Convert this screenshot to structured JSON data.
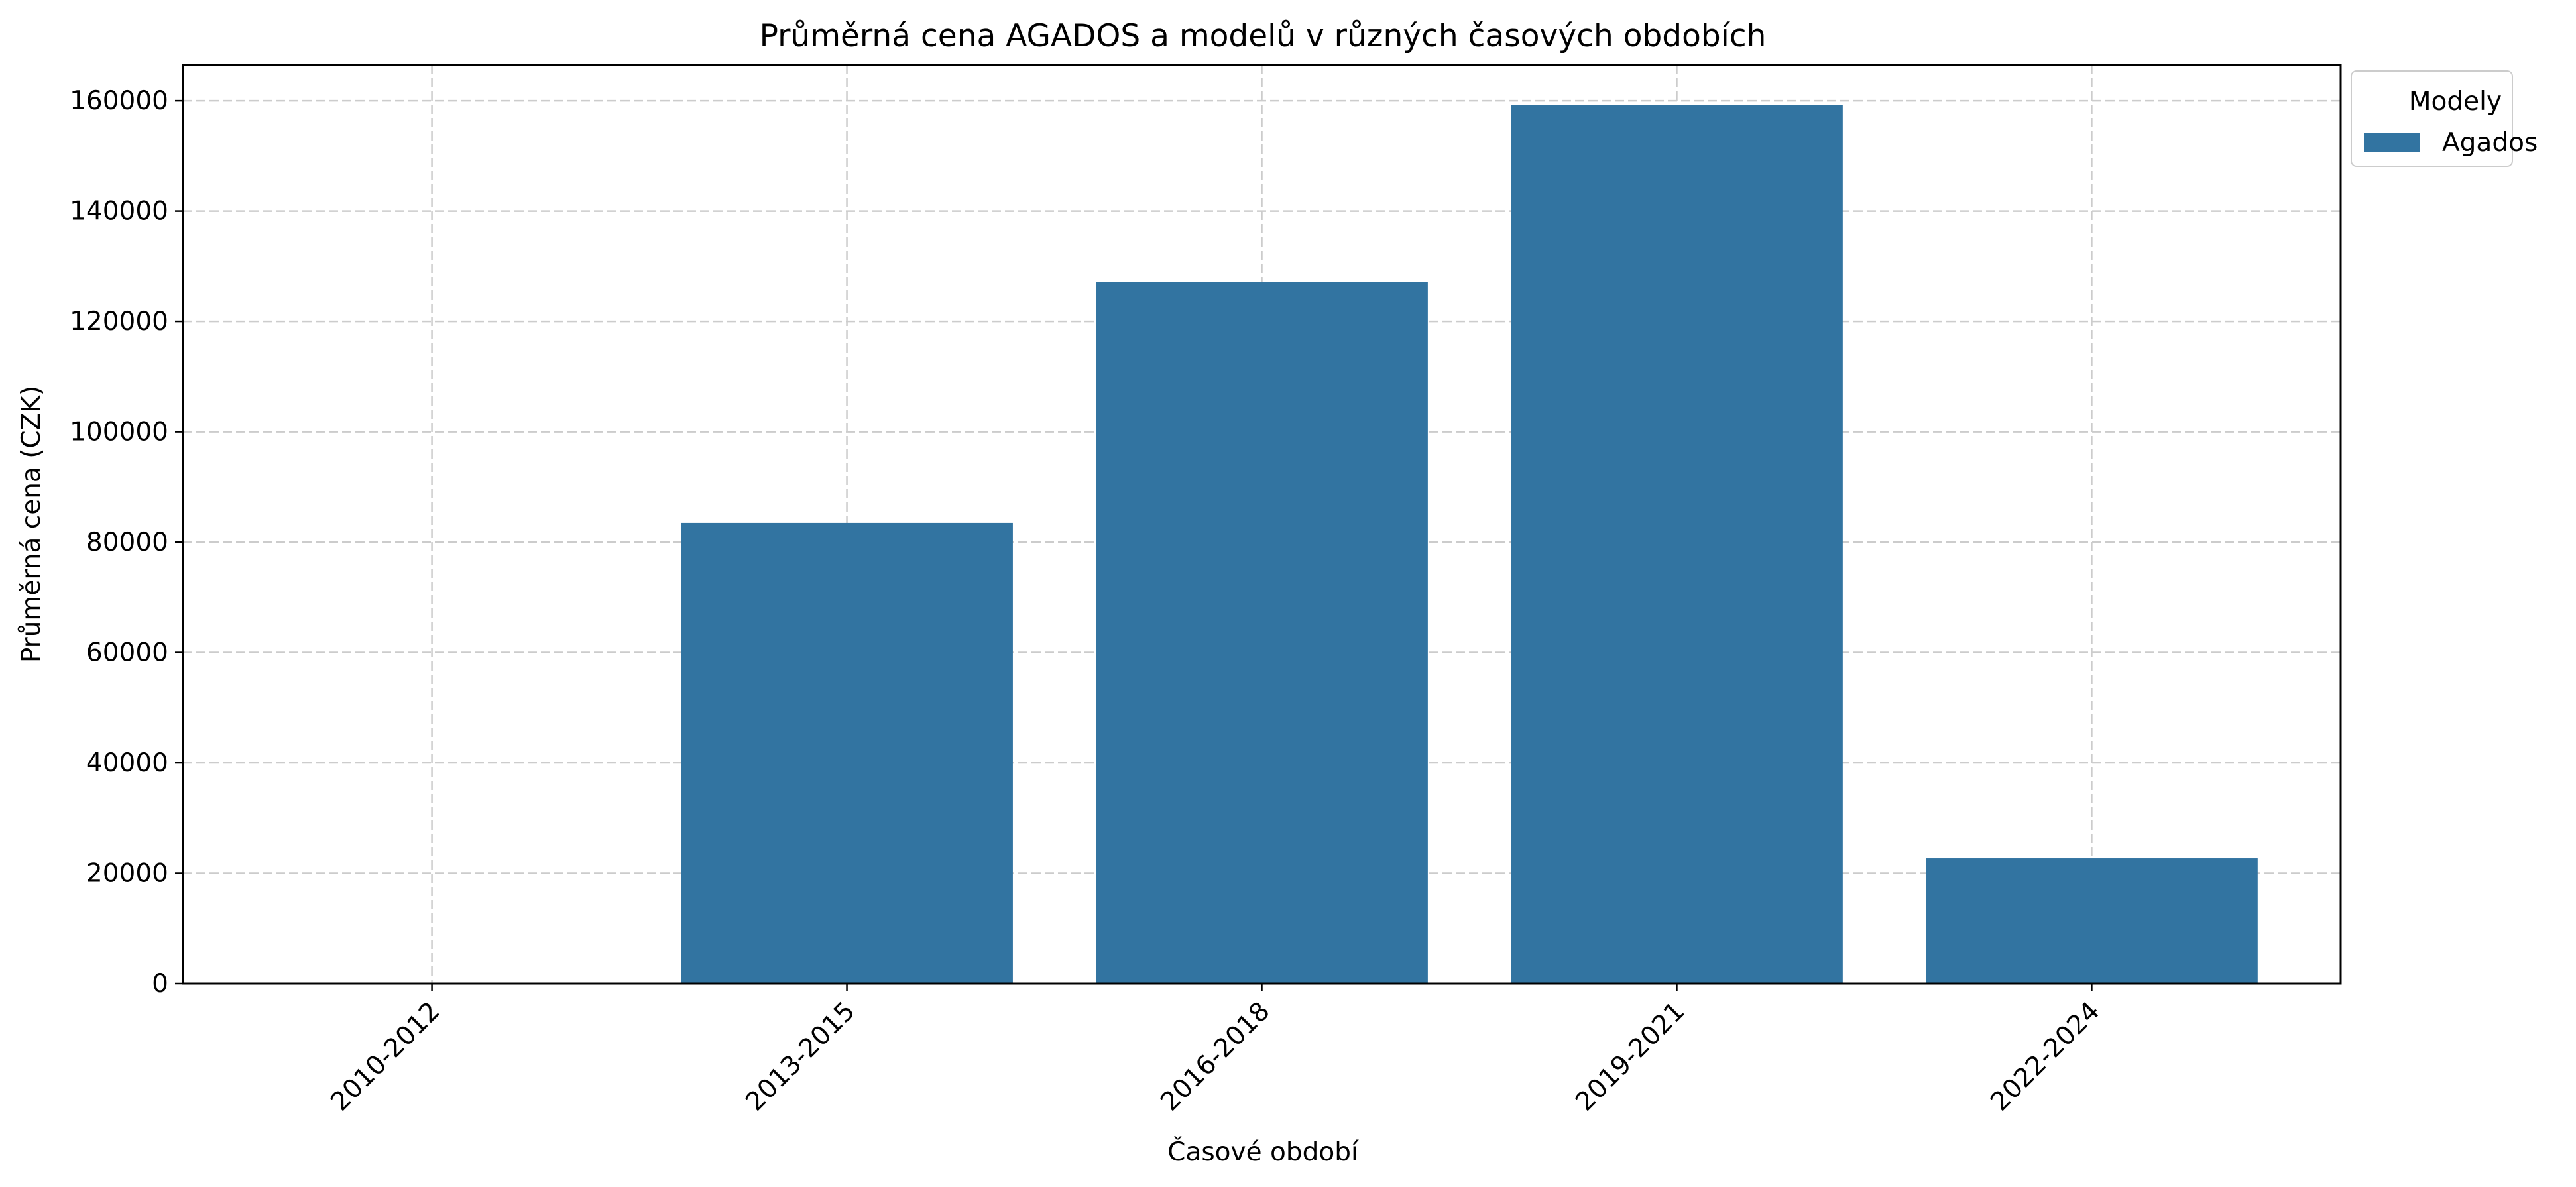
{
  "chart_data": {
    "type": "bar",
    "title": "Průměrná cena AGADOS a modelů v různých časových obdobích",
    "xlabel": "Časové období",
    "ylabel": "Průměrná cena (CZK)",
    "categories": [
      "2010-2012",
      "2013-2015",
      "2016-2018",
      "2019-2021",
      "2022-2024"
    ],
    "series": [
      {
        "name": "Agados",
        "values": [
          0,
          83500,
          127200,
          159200,
          22700
        ],
        "color": "#3274a1"
      }
    ],
    "ylim": [
      0,
      166500
    ],
    "yticks": [
      0,
      20000,
      40000,
      60000,
      80000,
      100000,
      120000,
      140000,
      160000
    ],
    "grid": true,
    "legend": {
      "title": "Modely",
      "placement": "outside-top-right"
    }
  }
}
